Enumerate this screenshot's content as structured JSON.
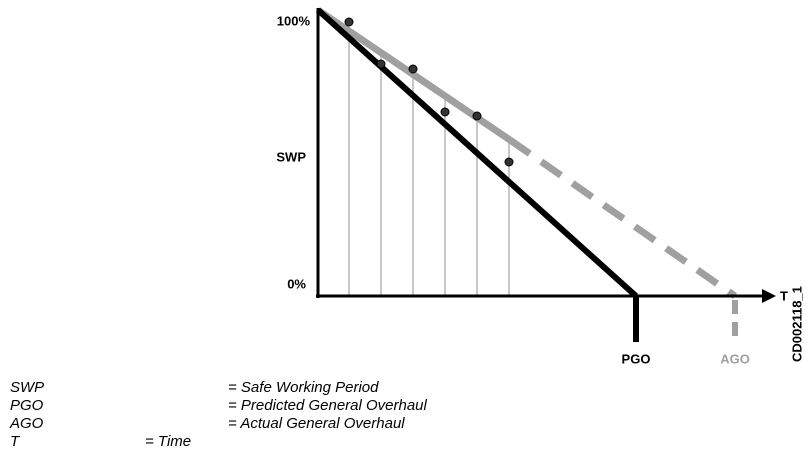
{
  "labels": {
    "y_top": "100%",
    "y_mid": "SWP",
    "y_bottom": "0%",
    "x_axis": "T",
    "pgo": "PGO",
    "ago": "AGO",
    "figure_id": "CD002118_1"
  },
  "legend": [
    {
      "term": "SWP",
      "definition": "= Safe Working Period"
    },
    {
      "term": "PGO",
      "definition": "= Predicted General Overhaul"
    },
    {
      "term": "AGO",
      "definition": "= Actual General Overhaul"
    },
    {
      "term": "T",
      "definition": "= Time"
    }
  ]
}
